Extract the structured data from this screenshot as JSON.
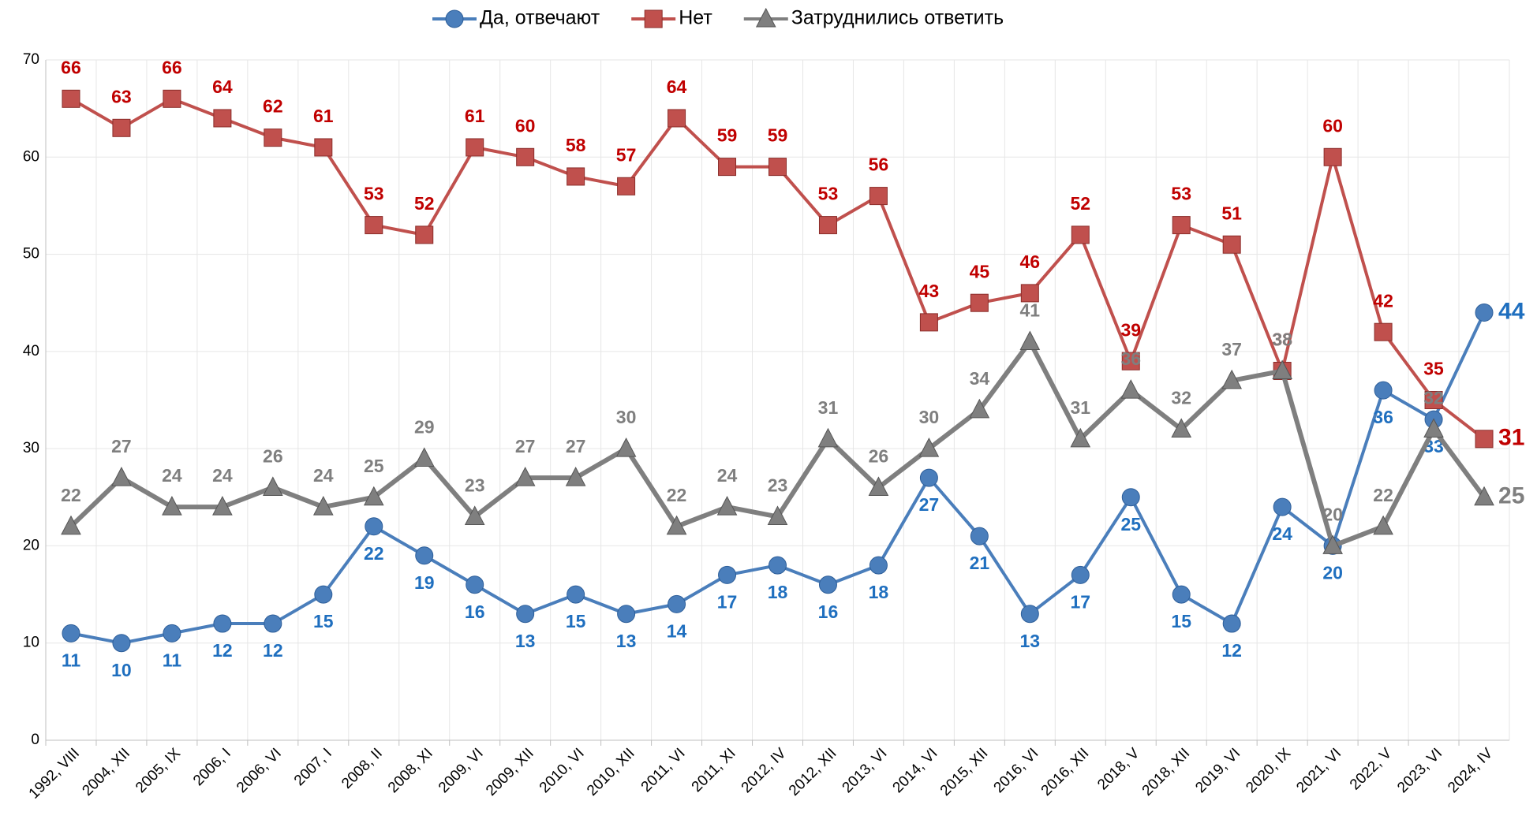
{
  "chart_data": {
    "type": "line",
    "categories": [
      "1992, VIII",
      "2004, XII",
      "2005, IX",
      "2006, I",
      "2006, VI",
      "2007, I",
      "2008, II",
      "2008, XI",
      "2009, VI",
      "2009, XII",
      "2010, VI",
      "2010, XII",
      "2011, VI",
      "2011, XI",
      "2012, IV",
      "2012, XII",
      "2013, VI",
      "2014, VI",
      "2015, XII",
      "2016, VI",
      "2016, XII",
      "2018, V",
      "2018, XII",
      "2019, VI",
      "2020, IX",
      "2021, VI",
      "2022, V",
      "2023, VI",
      "2024, IV"
    ],
    "series": [
      {
        "name": "Да, отвечают",
        "color": "#4a7ebb",
        "label_color": "#1f6fbf",
        "marker": "circle",
        "label_position": "below",
        "values": [
          11,
          10,
          11,
          12,
          12,
          15,
          22,
          19,
          16,
          13,
          15,
          13,
          14,
          17,
          18,
          16,
          18,
          27,
          21,
          13,
          17,
          25,
          15,
          12,
          24,
          20,
          36,
          33,
          44
        ]
      },
      {
        "name": "Нет",
        "color": "#c0504d",
        "label_color": "#c00000",
        "marker": "square",
        "label_position": "above",
        "values": [
          66,
          63,
          66,
          64,
          62,
          61,
          53,
          52,
          61,
          60,
          58,
          57,
          64,
          59,
          59,
          53,
          56,
          43,
          45,
          46,
          52,
          39,
          53,
          51,
          38,
          60,
          42,
          35,
          31
        ]
      },
      {
        "name": "Затруднились ответить",
        "color": "#7f7f7f",
        "label_color": "#7f7f7f",
        "marker": "triangle",
        "label_position": "above",
        "values": [
          22,
          27,
          24,
          24,
          26,
          24,
          25,
          29,
          23,
          27,
          27,
          30,
          22,
          24,
          23,
          31,
          26,
          30,
          34,
          41,
          31,
          36,
          32,
          37,
          38,
          20,
          22,
          32,
          25
        ]
      }
    ],
    "ylim": [
      0,
      70
    ],
    "yticks": [
      0,
      10,
      20,
      30,
      40,
      50,
      60,
      70
    ],
    "grid": true,
    "legend": "top"
  }
}
